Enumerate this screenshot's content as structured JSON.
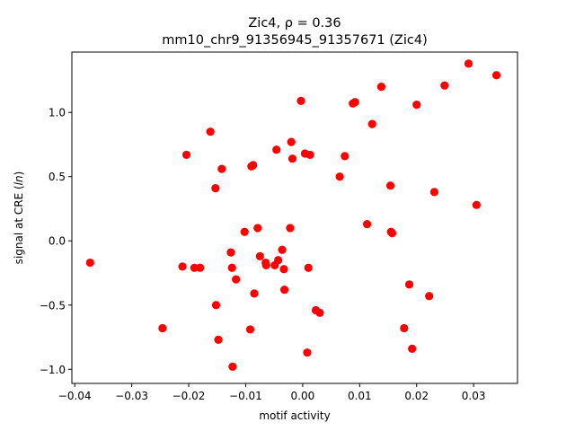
{
  "chart_data": {
    "type": "scatter",
    "title_line1": "Zic4, ρ = 0.36",
    "title_line2": "mm10_chr9_91356945_91357671 (Zic4)",
    "xlabel": "motif activity",
    "ylabel_prefix": "signal at CRE (",
    "ylabel_italic": "ln",
    "ylabel_suffix": ")",
    "xlim": [
      -0.0405,
      0.0377
    ],
    "ylim": [
      -1.11,
      1.47
    ],
    "xticks": [
      -0.04,
      -0.03,
      -0.02,
      -0.01,
      0.0,
      0.01,
      0.02,
      0.03
    ],
    "xtick_labels": [
      "−0.04",
      "−0.03",
      "−0.02",
      "−0.01",
      "0.00",
      "0.01",
      "0.02",
      "0.03"
    ],
    "yticks": [
      -1.0,
      -0.5,
      0.0,
      0.5,
      1.0
    ],
    "ytick_labels": [
      "−1.0",
      "−0.5",
      "0.0",
      "0.5",
      "1.0"
    ],
    "grid": false,
    "marker_color": "#ff0000",
    "points": [
      [
        -0.0373,
        -0.17
      ],
      [
        -0.0246,
        -0.68
      ],
      [
        -0.0211,
        -0.2
      ],
      [
        -0.0204,
        0.67
      ],
      [
        -0.019,
        -0.21
      ],
      [
        -0.018,
        -0.21
      ],
      [
        -0.0162,
        0.85
      ],
      [
        -0.0153,
        0.41
      ],
      [
        -0.0152,
        -0.5
      ],
      [
        -0.0148,
        -0.77
      ],
      [
        -0.0142,
        0.56
      ],
      [
        -0.0126,
        -0.09
      ],
      [
        -0.0124,
        -0.21
      ],
      [
        -0.0123,
        -0.98
      ],
      [
        -0.0117,
        -0.3
      ],
      [
        -0.0102,
        0.07
      ],
      [
        -0.0092,
        -0.69
      ],
      [
        -0.009,
        0.58
      ],
      [
        -0.0087,
        0.59
      ],
      [
        -0.0085,
        -0.41
      ],
      [
        -0.0079,
        0.1
      ],
      [
        -0.0075,
        -0.12
      ],
      [
        -0.0065,
        -0.17
      ],
      [
        -0.0064,
        -0.19
      ],
      [
        -0.0049,
        -0.19
      ],
      [
        -0.0046,
        0.71
      ],
      [
        -0.0043,
        -0.15
      ],
      [
        -0.0036,
        -0.07
      ],
      [
        -0.0033,
        -0.22
      ],
      [
        -0.0032,
        -0.38
      ],
      [
        -0.0022,
        0.1
      ],
      [
        -0.002,
        0.77
      ],
      [
        -0.0018,
        0.64
      ],
      [
        -0.0003,
        1.09
      ],
      [
        0.0004,
        0.68
      ],
      [
        0.0008,
        -0.87
      ],
      [
        0.001,
        -0.21
      ],
      [
        0.0013,
        0.67
      ],
      [
        0.0023,
        -0.54
      ],
      [
        0.003,
        -0.56
      ],
      [
        0.0065,
        0.5
      ],
      [
        0.0074,
        0.66
      ],
      [
        0.0088,
        1.07
      ],
      [
        0.0092,
        1.08
      ],
      [
        0.0113,
        0.13
      ],
      [
        0.0122,
        0.91
      ],
      [
        0.0138,
        1.2
      ],
      [
        0.0154,
        0.43
      ],
      [
        0.0155,
        0.07
      ],
      [
        0.0157,
        0.06
      ],
      [
        0.0178,
        -0.68
      ],
      [
        0.0187,
        -0.34
      ],
      [
        0.0192,
        -0.84
      ],
      [
        0.02,
        1.06
      ],
      [
        0.0222,
        -0.43
      ],
      [
        0.0231,
        0.38
      ],
      [
        0.0249,
        1.21
      ],
      [
        0.0291,
        1.38
      ],
      [
        0.0305,
        0.28
      ],
      [
        0.034,
        1.29
      ]
    ]
  }
}
